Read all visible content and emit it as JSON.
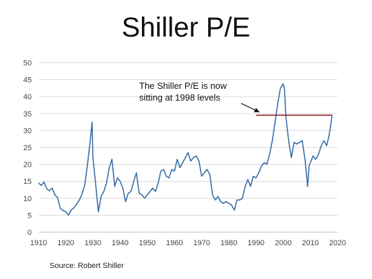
{
  "slide": {
    "title": "Shiller P/E",
    "source": "Source: Robert Shiller"
  },
  "chart_data": {
    "type": "line",
    "title": "",
    "xlabel": "",
    "ylabel": "",
    "xlim": [
      1910,
      2020
    ],
    "ylim": [
      0,
      50
    ],
    "x_ticks": [
      1910,
      1920,
      1930,
      1940,
      1950,
      1960,
      1970,
      1980,
      1990,
      2000,
      2010,
      2020
    ],
    "y_ticks": [
      0,
      5,
      10,
      15,
      20,
      25,
      30,
      35,
      40,
      45,
      50
    ],
    "grid": "horizontal",
    "legend": "none",
    "annotations": [
      {
        "text_line1": "The Shiller P/E is now",
        "text_line2": "sitting at 1998 levels",
        "arrow_to": [
          1990.5,
          35
        ]
      }
    ],
    "reference_line": {
      "y": 34.5,
      "x_start": 1990,
      "x_end": 2018,
      "color": "#8b1a1a"
    },
    "series": [
      {
        "color": "#3a6ea8",
        "points": [
          [
            1910,
            14.5
          ],
          [
            1911,
            13.8
          ],
          [
            1912,
            14.8
          ],
          [
            1913,
            12.8
          ],
          [
            1914,
            12.2
          ],
          [
            1915,
            13.0
          ],
          [
            1916,
            11.0
          ],
          [
            1917,
            10.2
          ],
          [
            1918,
            7.0
          ],
          [
            1919,
            6.4
          ],
          [
            1920,
            6.0
          ],
          [
            1921,
            5.0
          ],
          [
            1922,
            6.5
          ],
          [
            1923,
            7.2
          ],
          [
            1924,
            8.3
          ],
          [
            1925,
            9.5
          ],
          [
            1926,
            11.3
          ],
          [
            1927,
            14.0
          ],
          [
            1928,
            20.0
          ],
          [
            1929,
            27.0
          ],
          [
            1929.7,
            32.5
          ],
          [
            1930,
            22.0
          ],
          [
            1931,
            14.0
          ],
          [
            1932,
            6.0
          ],
          [
            1933,
            10.5
          ],
          [
            1934,
            12.0
          ],
          [
            1935,
            14.5
          ],
          [
            1936,
            19.0
          ],
          [
            1937,
            21.5
          ],
          [
            1938,
            13.5
          ],
          [
            1939,
            16.0
          ],
          [
            1940,
            15.0
          ],
          [
            1941,
            13.0
          ],
          [
            1942,
            9.0
          ],
          [
            1943,
            11.5
          ],
          [
            1944,
            12.0
          ],
          [
            1945,
            15.0
          ],
          [
            1946,
            17.5
          ],
          [
            1947,
            11.5
          ],
          [
            1948,
            11.0
          ],
          [
            1949,
            10.0
          ],
          [
            1950,
            11.0
          ],
          [
            1951,
            12.0
          ],
          [
            1952,
            13.0
          ],
          [
            1953,
            12.0
          ],
          [
            1954,
            14.5
          ],
          [
            1955,
            18.0
          ],
          [
            1956,
            18.5
          ],
          [
            1957,
            16.5
          ],
          [
            1958,
            16.0
          ],
          [
            1959,
            18.5
          ],
          [
            1960,
            18.0
          ],
          [
            1961,
            21.5
          ],
          [
            1962,
            19.0
          ],
          [
            1963,
            20.5
          ],
          [
            1964,
            22.0
          ],
          [
            1965,
            23.5
          ],
          [
            1966,
            21.0
          ],
          [
            1967,
            22.0
          ],
          [
            1968,
            22.5
          ],
          [
            1969,
            21.0
          ],
          [
            1970,
            16.5
          ],
          [
            1971,
            17.5
          ],
          [
            1972,
            18.5
          ],
          [
            1973,
            17.0
          ],
          [
            1974,
            11.0
          ],
          [
            1975,
            9.5
          ],
          [
            1976,
            10.5
          ],
          [
            1977,
            9.0
          ],
          [
            1978,
            8.5
          ],
          [
            1979,
            9.0
          ],
          [
            1980,
            8.5
          ],
          [
            1981,
            8.0
          ],
          [
            1982,
            6.5
          ],
          [
            1983,
            9.5
          ],
          [
            1984,
            9.5
          ],
          [
            1985,
            10.0
          ],
          [
            1986,
            13.5
          ],
          [
            1987,
            15.5
          ],
          [
            1988,
            13.5
          ],
          [
            1989,
            16.5
          ],
          [
            1990,
            16.0
          ],
          [
            1991,
            17.5
          ],
          [
            1992,
            19.5
          ],
          [
            1993,
            20.5
          ],
          [
            1994,
            20.0
          ],
          [
            1995,
            23.0
          ],
          [
            1996,
            27.0
          ],
          [
            1997,
            32.5
          ],
          [
            1998,
            38.0
          ],
          [
            1999,
            42.5
          ],
          [
            2000,
            43.8
          ],
          [
            2000.5,
            42.0
          ],
          [
            2001,
            34.0
          ],
          [
            2002,
            27.0
          ],
          [
            2003,
            22.0
          ],
          [
            2004,
            26.5
          ],
          [
            2005,
            26.0
          ],
          [
            2006,
            26.5
          ],
          [
            2007,
            27.0
          ],
          [
            2008,
            21.5
          ],
          [
            2009,
            13.5
          ],
          [
            2009.5,
            19.5
          ],
          [
            2010,
            20.5
          ],
          [
            2011,
            22.5
          ],
          [
            2012,
            21.5
          ],
          [
            2013,
            23.0
          ],
          [
            2014,
            25.5
          ],
          [
            2015,
            27.0
          ],
          [
            2016,
            25.5
          ],
          [
            2017,
            29.0
          ],
          [
            2018,
            34.5
          ]
        ]
      }
    ]
  }
}
